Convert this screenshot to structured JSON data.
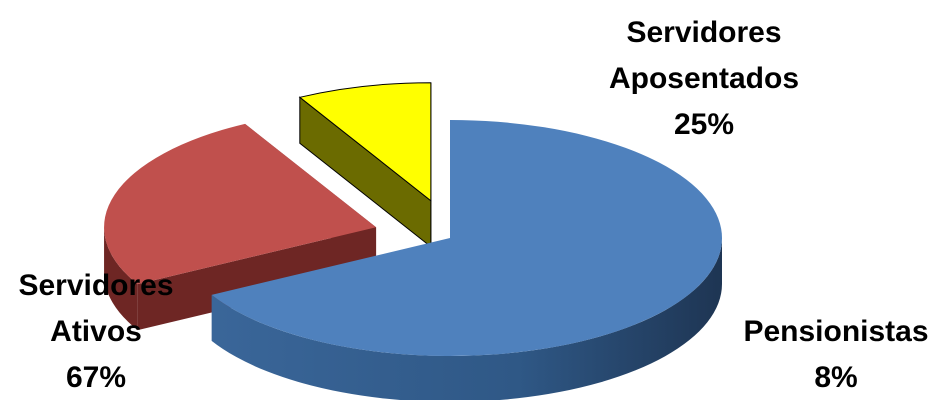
{
  "chart_data": {
    "type": "pie",
    "style": "3d-exploded",
    "slices": [
      {
        "label_lines": [
          "Servidores",
          "Ativos"
        ],
        "percent_label": "67%",
        "value": 67,
        "color": "#4F81BD",
        "side_color": "#2B4F7E",
        "exploded": false
      },
      {
        "label_lines": [
          "Servidores",
          "Aposentados"
        ],
        "percent_label": "25%",
        "value": 25,
        "color": "#C0504D",
        "side_color": "#6E2624",
        "exploded": true
      },
      {
        "label_lines": [
          "Pensionistas"
        ],
        "percent_label": "8%",
        "value": 8,
        "color": "#FFFF00",
        "side_color": "#6B6B00",
        "exploded": true
      }
    ]
  }
}
